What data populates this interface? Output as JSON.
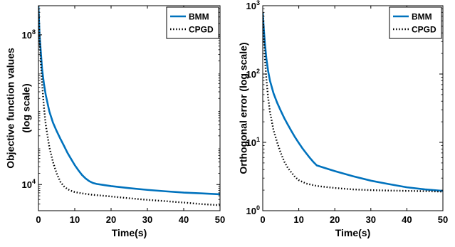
{
  "chart_data": [
    {
      "type": "line",
      "xlabel": "Time(s)",
      "ylabel_lines": [
        "Objective function values",
        "(log scale)"
      ],
      "yscale": "log",
      "xlim": [
        0,
        50
      ],
      "ylim": [
        2000,
        600000000
      ],
      "x_ticks": [
        0,
        10,
        20,
        30,
        40,
        50
      ],
      "y_ticks": [
        {
          "value": 10000,
          "base": "10",
          "exp": "4"
        },
        {
          "value": 100000000,
          "base": "10",
          "exp": "8"
        }
      ],
      "legend": {
        "position": "top-right"
      },
      "series": [
        {
          "name": "BMM",
          "color": "#0072BD",
          "style": "solid",
          "x": [
            0,
            0.3,
            0.7,
            1,
            1.5,
            2,
            3,
            4,
            5,
            6,
            7,
            8,
            9,
            10,
            11,
            12,
            13,
            14,
            15,
            16,
            18,
            20,
            25,
            30,
            35,
            40,
            45,
            50
          ],
          "y": [
            600000000,
            100000000,
            30000000,
            12000000,
            5000000,
            2500000,
            900000,
            450000,
            270000,
            170000,
            110000,
            70000,
            48000,
            33000,
            24000,
            18000,
            14500,
            12300,
            11000,
            10400,
            9700,
            9100,
            8000,
            7200,
            6600,
            6100,
            5800,
            5500
          ]
        },
        {
          "name": "CPGD",
          "color": "#000000",
          "style": "dotted",
          "x": [
            0,
            0.3,
            0.7,
            1,
            1.5,
            2,
            3,
            4,
            5,
            6,
            7,
            8,
            9,
            10,
            12,
            15,
            20,
            25,
            30,
            35,
            40,
            45,
            50
          ],
          "y": [
            600000000,
            80000000,
            15000000,
            5000000,
            1200000,
            400000,
            100000,
            40000,
            20000,
            12000,
            9000,
            7500,
            6800,
            6300,
            5800,
            5300,
            4800,
            4300,
            3900,
            3600,
            3300,
            3000,
            2800
          ]
        }
      ]
    },
    {
      "type": "line",
      "xlabel": "Time(s)",
      "ylabel_lines": [
        "Orthogonal error (log scale)"
      ],
      "yscale": "log",
      "xlim": [
        0,
        50
      ],
      "ylim": [
        1,
        1000
      ],
      "x_ticks": [
        0,
        10,
        20,
        30,
        40,
        50
      ],
      "y_ticks": [
        {
          "value": 1,
          "base": "10",
          "exp": "0"
        },
        {
          "value": 10,
          "base": "10",
          "exp": "1"
        },
        {
          "value": 100,
          "base": "10",
          "exp": "2"
        },
        {
          "value": 1000,
          "base": "10",
          "exp": "3"
        }
      ],
      "legend": {
        "position": "top-right"
      },
      "series": [
        {
          "name": "BMM",
          "color": "#0072BD",
          "style": "solid",
          "x": [
            0,
            0.3,
            0.6,
            1,
            1.5,
            2,
            3,
            4,
            5,
            6,
            7,
            8,
            9,
            10,
            11,
            12,
            13,
            14,
            15,
            17,
            20,
            25,
            30,
            35,
            40,
            45,
            50
          ],
          "y": [
            800,
            450,
            280,
            170,
            110,
            80,
            52,
            38,
            29,
            22.5,
            18,
            14.5,
            11.8,
            9.8,
            8.2,
            7,
            6,
            5.2,
            4.6,
            4.25,
            3.8,
            3.2,
            2.75,
            2.45,
            2.2,
            2.05,
            1.95
          ]
        },
        {
          "name": "CPGD",
          "color": "#000000",
          "style": "dotted",
          "x": [
            0,
            0.3,
            0.6,
            1,
            1.5,
            2,
            3,
            4,
            5,
            6,
            7,
            8,
            9,
            10,
            12,
            15,
            20,
            25,
            30,
            35,
            40,
            45,
            50
          ],
          "y": [
            800,
            350,
            170,
            85,
            45,
            28,
            15,
            10,
            7,
            5.2,
            4.2,
            3.6,
            3.1,
            2.8,
            2.5,
            2.3,
            2.15,
            2.05,
            2,
            1.97,
            1.95,
            1.93,
            1.9
          ]
        }
      ]
    }
  ]
}
